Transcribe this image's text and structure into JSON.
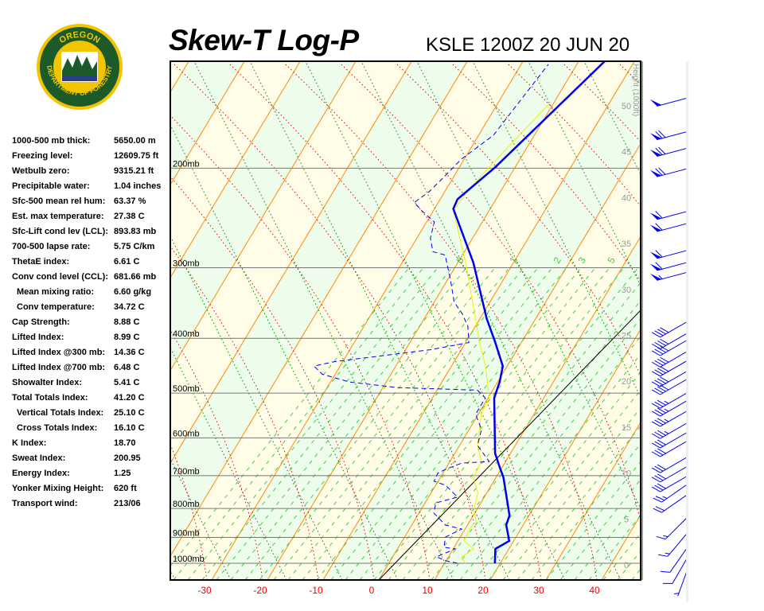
{
  "header": {
    "title": "Skew-T Log-P",
    "station_time": "KSLE 1200Z 20 JUN 20",
    "logo_text": "OREGON DEPARTMENT OF FORESTRY"
  },
  "stats": [
    {
      "label": "1000-500 mb thick:",
      "value": "5650.00 m"
    },
    {
      "label": "Freezing level:",
      "value": "12609.75 ft"
    },
    {
      "label": "Wetbulb zero:",
      "value": "9315.21 ft"
    },
    {
      "label": "Precipitable water:",
      "value": "1.04 inches"
    },
    {
      "label": "Sfc-500 mean rel hum:",
      "value": "63.37 %"
    },
    {
      "label": "Est. max temperature:",
      "value": "27.38 C"
    },
    {
      "label": "Sfc-Lift cond lev (LCL):",
      "value": "893.83 mb"
    },
    {
      "label": "700-500 lapse rate:",
      "value": "5.75 C/km"
    },
    {
      "label": "ThetaE index:",
      "value": "6.61 C"
    },
    {
      "label": "Conv cond level (CCL):",
      "value": "681.66 mb"
    },
    {
      "label": "Mean mixing ratio:",
      "value": "6.60 g/kg",
      "indent": true
    },
    {
      "label": "Conv temperature:",
      "value": "34.72 C",
      "indent": true
    },
    {
      "label": "Cap Strength:",
      "value": "8.88 C"
    },
    {
      "label": "Lifted Index:",
      "value": "8.99 C"
    },
    {
      "label": "Lifted Index @300 mb:",
      "value": "14.36 C"
    },
    {
      "label": "Lifted Index @700 mb:",
      "value": "6.48 C"
    },
    {
      "label": "Showalter Index:",
      "value": "5.41 C"
    },
    {
      "label": "Total Totals Index:",
      "value": "41.20 C"
    },
    {
      "label": "Vertical Totals Index:",
      "value": "25.10 C",
      "indent": true
    },
    {
      "label": "Cross Totals Index:",
      "value": "16.10 C",
      "indent": true
    },
    {
      "label": "K Index:",
      "value": "18.70"
    },
    {
      "label": "Sweat Index:",
      "value": "200.95"
    },
    {
      "label": "Energy Index:",
      "value": "1.25"
    },
    {
      "label": "Yonker Mixing Height:",
      "value": "620 ft"
    },
    {
      "label": "Transport wind:",
      "value": "213/06"
    }
  ],
  "chart_data": {
    "type": "line",
    "subtype": "skew-t log-p",
    "title": "Skew-T Log-P",
    "subtitle": "KSLE 1200Z 20 JUN 20",
    "y_scale": "log-pressure",
    "ylim_mb": [
      1070,
      129
    ],
    "xlim_c": [
      -37,
      47
    ],
    "x_ticks": [
      "-30",
      "-20",
      "-10",
      "0",
      "10",
      "20",
      "30",
      "40"
    ],
    "x_tick_values": [
      -30,
      -20,
      -10,
      0,
      10,
      20,
      30,
      40
    ],
    "pressure_levels": [
      {
        "p": 200,
        "label": "200mb"
      },
      {
        "p": 300,
        "label": "300mb"
      },
      {
        "p": 400,
        "label": "400mb"
      },
      {
        "p": 500,
        "label": "500mb"
      },
      {
        "p": 600,
        "label": "600mb"
      },
      {
        "p": 700,
        "label": "700mb"
      },
      {
        "p": 800,
        "label": "800mb"
      },
      {
        "p": 900,
        "label": "900mb"
      },
      {
        "p": 1000,
        "label": "1000mb"
      }
    ],
    "height_axis_label": "Height (1000ft)",
    "height_ticks": [
      "0",
      "5",
      "10",
      "15",
      "20",
      "25",
      "30",
      "35",
      "40",
      "45",
      "50"
    ],
    "mixing_ratio_labels": [
      "0",
      "1",
      "2",
      "3",
      "5"
    ],
    "grid": true,
    "colors": {
      "temperature_line": "#0000ee",
      "dewpoint_line": "#0000ee",
      "yellow_line": "#eeee00",
      "isopleth": "#ff8800",
      "dry_adiabat": "#ee0000",
      "moist_adiabat": "#008800",
      "mixing_ratio": "#44cc44",
      "band_a": "#fffde8",
      "band_b": "#eefcec"
    },
    "series": [
      {
        "style": "solid-thick",
        "color": "#0000ee",
        "points": [
          [
            1000,
            19.2
          ],
          [
            943,
            16.8
          ],
          [
            913,
            17.9
          ],
          [
            856,
            14.6
          ],
          [
            823,
            13.5
          ],
          [
            705,
            5.8
          ],
          [
            678,
            3.5
          ],
          [
            639,
            0.1
          ],
          [
            510,
            -9.7
          ],
          [
            478,
            -11.5
          ],
          [
            448,
            -13.7
          ],
          [
            406,
            -19.3
          ],
          [
            369,
            -24.9
          ],
          [
            294,
            -37.0
          ],
          [
            236,
            -50.0
          ],
          [
            227,
            -50.9
          ],
          [
            199,
            -49.7
          ],
          [
            129,
            -48.5
          ]
        ]
      },
      {
        "style": "dashed",
        "color": "#0000ee",
        "points": [
          [
            1000,
            12.5
          ],
          [
            990,
            10.0
          ],
          [
            974,
            7.6
          ],
          [
            943,
            9.6
          ],
          [
            937,
            7.3
          ],
          [
            899,
            5.8
          ],
          [
            870,
            7.3
          ],
          [
            856,
            3.7
          ],
          [
            815,
            -0.5
          ],
          [
            782,
            -1.9
          ],
          [
            764,
            1.0
          ],
          [
            728,
            -3.2
          ],
          [
            716,
            -6.0
          ],
          [
            693,
            -6.7
          ],
          [
            682,
            -6.0
          ],
          [
            665,
            -4.2
          ],
          [
            661,
            0.5
          ],
          [
            619,
            -4.4
          ],
          [
            580,
            -6.5
          ],
          [
            545,
            -10.2
          ],
          [
            510,
            -11.3
          ],
          [
            494,
            -14.1
          ],
          [
            489,
            -28.8
          ],
          [
            478,
            -38.4
          ],
          [
            463,
            -44.7
          ],
          [
            448,
            -47.6
          ],
          [
            440,
            -44.7
          ],
          [
            419,
            -29.6
          ],
          [
            407,
            -23.9
          ],
          [
            381,
            -26.9
          ],
          [
            362,
            -30.1
          ],
          [
            345,
            -33.6
          ],
          [
            313,
            -38.5
          ],
          [
            285,
            -43.4
          ],
          [
            281,
            -46.2
          ],
          [
            266,
            -49.0
          ],
          [
            249,
            -51.1
          ],
          [
            238,
            -55.3
          ],
          [
            230,
            -58.1
          ],
          [
            220,
            -57.3
          ],
          [
            206,
            -57.2
          ],
          [
            193,
            -57.2
          ],
          [
            175,
            -55.6
          ],
          [
            131,
            -58.1
          ]
        ]
      },
      {
        "style": "solid-thin",
        "color": "#eeee00",
        "points": [
          [
            1000,
            13.9
          ],
          [
            974,
            12.1
          ],
          [
            943,
            12.9
          ],
          [
            913,
            9.8
          ],
          [
            870,
            8.7
          ],
          [
            842,
            8.5
          ],
          [
            802,
            6.0
          ],
          [
            751,
            3.9
          ],
          [
            705,
            0.4
          ],
          [
            661,
            -0.9
          ],
          [
            619,
            -4.4
          ],
          [
            545,
            -9.2
          ],
          [
            510,
            -10.6
          ],
          [
            448,
            -16.8
          ],
          [
            407,
            -22.0
          ],
          [
            369,
            -26.9
          ],
          [
            294,
            -38.4
          ],
          [
            238,
            -49.6
          ],
          [
            227,
            -50.2
          ],
          [
            202,
            -50.8
          ],
          [
            154,
            -51.1
          ]
        ]
      }
    ],
    "wind_barbs_units": "p_mb, direction_deg, speed_kt",
    "wind_barbs": [
      [
        150,
        255,
        50
      ],
      [
        172,
        255,
        70
      ],
      [
        184,
        255,
        70
      ],
      [
        200,
        255,
        70
      ],
      [
        238,
        255,
        60
      ],
      [
        250,
        255,
        60
      ],
      [
        279,
        255,
        60
      ],
      [
        293,
        255,
        60
      ],
      [
        305,
        255,
        55
      ],
      [
        372,
        240,
        40
      ],
      [
        390,
        240,
        40
      ],
      [
        401,
        240,
        40
      ],
      [
        420,
        240,
        40
      ],
      [
        436,
        240,
        40
      ],
      [
        455,
        240,
        40
      ],
      [
        470,
        240,
        40
      ],
      [
        497,
        240,
        35
      ],
      [
        513,
        240,
        35
      ],
      [
        535,
        240,
        35
      ],
      [
        562,
        240,
        35
      ],
      [
        584,
        240,
        30
      ],
      [
        605,
        240,
        30
      ],
      [
        646,
        240,
        30
      ],
      [
        671,
        240,
        30
      ],
      [
        698,
        240,
        30
      ],
      [
        721,
        235,
        25
      ],
      [
        752,
        235,
        20
      ],
      [
        823,
        225,
        15
      ],
      [
        876,
        220,
        15
      ],
      [
        928,
        215,
        10
      ],
      [
        965,
        210,
        10
      ],
      [
        1006,
        200,
        5
      ]
    ]
  }
}
